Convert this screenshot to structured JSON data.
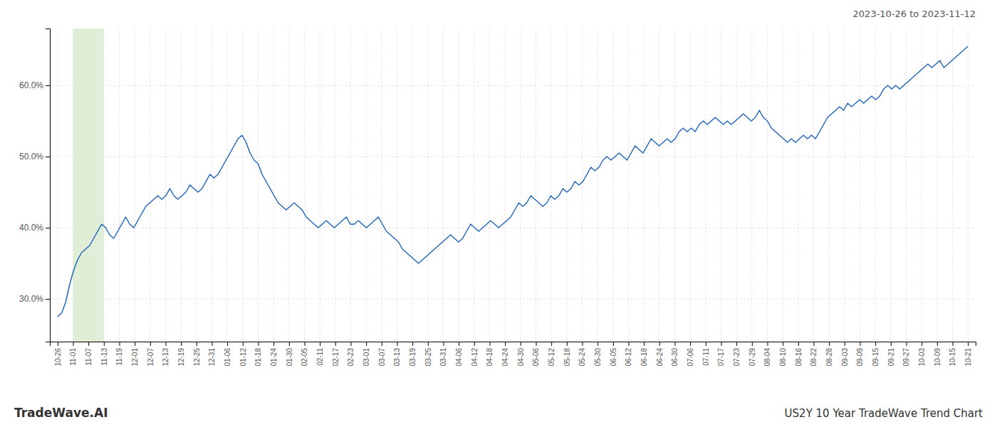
{
  "chart_data": {
    "type": "line",
    "title": "2023-10-26 to 2023-11-12",
    "annotations": [
      "TradeWave.AI",
      "US2Y 10 Year TradeWave Trend Chart"
    ],
    "color": "#2266bb",
    "highlight_range": [
      1.0,
      3.0
    ],
    "highlight_color": "#e0eed8",
    "grid": true,
    "xlim": [
      -0.5,
      59.5
    ],
    "xticks": [
      {
        "value": 0,
        "label": "10-26"
      },
      {
        "value": 1,
        "label": "11-01"
      },
      {
        "value": 2,
        "label": "11-07"
      },
      {
        "value": 3,
        "label": "11-13"
      },
      {
        "value": 4,
        "label": "11-19"
      },
      {
        "value": 5,
        "label": "12-01"
      },
      {
        "value": 6,
        "label": "12-07"
      },
      {
        "value": 7,
        "label": "12-13"
      },
      {
        "value": 8,
        "label": "12-19"
      },
      {
        "value": 9,
        "label": "12-25"
      },
      {
        "value": 10,
        "label": "12-31"
      },
      {
        "value": 11,
        "label": "01-06"
      },
      {
        "value": 12,
        "label": "01-12"
      },
      {
        "value": 13,
        "label": "01-18"
      },
      {
        "value": 14,
        "label": "01-24"
      },
      {
        "value": 15,
        "label": "01-30"
      },
      {
        "value": 16,
        "label": "02-05"
      },
      {
        "value": 17,
        "label": "02-11"
      },
      {
        "value": 18,
        "label": "02-17"
      },
      {
        "value": 19,
        "label": "02-23"
      },
      {
        "value": 20,
        "label": "03-01"
      },
      {
        "value": 21,
        "label": "03-07"
      },
      {
        "value": 22,
        "label": "03-13"
      },
      {
        "value": 23,
        "label": "03-19"
      },
      {
        "value": 24,
        "label": "03-25"
      },
      {
        "value": 25,
        "label": "03-31"
      },
      {
        "value": 26,
        "label": "04-06"
      },
      {
        "value": 27,
        "label": "04-12"
      },
      {
        "value": 28,
        "label": "04-18"
      },
      {
        "value": 29,
        "label": "04-24"
      },
      {
        "value": 30,
        "label": "04-30"
      },
      {
        "value": 31,
        "label": "05-06"
      },
      {
        "value": 32,
        "label": "05-12"
      },
      {
        "value": 33,
        "label": "05-18"
      },
      {
        "value": 34,
        "label": "05-24"
      },
      {
        "value": 35,
        "label": "05-30"
      },
      {
        "value": 36,
        "label": "06-05"
      },
      {
        "value": 37,
        "label": "06-12"
      },
      {
        "value": 38,
        "label": "06-18"
      },
      {
        "value": 39,
        "label": "06-24"
      },
      {
        "value": 40,
        "label": "06-30"
      },
      {
        "value": 41,
        "label": "07-06"
      },
      {
        "value": 42,
        "label": "07-11"
      },
      {
        "value": 43,
        "label": "07-17"
      },
      {
        "value": 44,
        "label": "07-23"
      },
      {
        "value": 45,
        "label": "07-29"
      },
      {
        "value": 46,
        "label": "08-04"
      },
      {
        "value": 47,
        "label": "08-10"
      },
      {
        "value": 48,
        "label": "08-16"
      },
      {
        "value": 49,
        "label": "08-22"
      },
      {
        "value": 50,
        "label": "08-28"
      },
      {
        "value": 51,
        "label": "09-03"
      },
      {
        "value": 52,
        "label": "09-09"
      },
      {
        "value": 53,
        "label": "09-15"
      },
      {
        "value": 54,
        "label": "09-21"
      },
      {
        "value": 55,
        "label": "09-27"
      },
      {
        "value": 56,
        "label": "10-03"
      },
      {
        "value": 57,
        "label": "10-09"
      },
      {
        "value": 58,
        "label": "10-15"
      },
      {
        "value": 59,
        "label": "10-21"
      }
    ],
    "ylim": [
      24.0,
      68.0
    ],
    "yticks": [
      {
        "value": 30.0,
        "label": "30.0%"
      },
      {
        "value": 40.0,
        "label": "40.0%"
      },
      {
        "value": 50.0,
        "label": "50.0%"
      },
      {
        "value": 60.0,
        "label": "60.0%"
      }
    ],
    "values": [
      27.5,
      28.0,
      29.5,
      32.0,
      34.0,
      35.5,
      36.5,
      37.0,
      37.5,
      38.5,
      39.5,
      40.5,
      40.0,
      39.0,
      38.5,
      39.5,
      40.5,
      41.5,
      40.5,
      40.0,
      41.0,
      42.0,
      43.0,
      43.5,
      44.0,
      44.5,
      44.0,
      44.5,
      45.5,
      44.5,
      44.0,
      44.5,
      45.0,
      46.0,
      45.5,
      45.0,
      45.5,
      46.5,
      47.5,
      47.0,
      47.5,
      48.5,
      49.5,
      50.5,
      51.5,
      52.5,
      53.0,
      52.0,
      50.5,
      49.5,
      49.0,
      47.5,
      46.5,
      45.5,
      44.5,
      43.5,
      43.0,
      42.5,
      43.0,
      43.5,
      43.0,
      42.5,
      41.5,
      41.0,
      40.5,
      40.0,
      40.5,
      41.0,
      40.5,
      40.0,
      40.5,
      41.0,
      41.5,
      40.5,
      40.5,
      41.0,
      40.5,
      40.0,
      40.5,
      41.0,
      41.5,
      40.5,
      39.5,
      39.0,
      38.5,
      38.0,
      37.0,
      36.5,
      36.0,
      35.5,
      35.0,
      35.5,
      36.0,
      36.5,
      37.0,
      37.5,
      38.0,
      38.5,
      39.0,
      38.5,
      38.0,
      38.5,
      39.5,
      40.5,
      40.0,
      39.5,
      40.0,
      40.5,
      41.0,
      40.5,
      40.0,
      40.5,
      41.0,
      41.5,
      42.5,
      43.5,
      43.0,
      43.5,
      44.5,
      44.0,
      43.5,
      43.0,
      43.5,
      44.5,
      44.0,
      44.5,
      45.5,
      45.0,
      45.5,
      46.5,
      46.0,
      46.5,
      47.5,
      48.5,
      48.0,
      48.5,
      49.5,
      50.0,
      49.5,
      50.0,
      50.5,
      50.0,
      49.5,
      50.5,
      51.5,
      51.0,
      50.5,
      51.5,
      52.5,
      52.0,
      51.5,
      52.0,
      52.5,
      52.0,
      52.5,
      53.5,
      54.0,
      53.5,
      54.0,
      53.5,
      54.5,
      55.0,
      54.5,
      55.0,
      55.5,
      55.0,
      54.5,
      55.0,
      54.5,
      55.0,
      55.5,
      56.0,
      55.5,
      55.0,
      55.5,
      56.5,
      55.5,
      55.0,
      54.0,
      53.5,
      53.0,
      52.5,
      52.0,
      52.5,
      52.0,
      52.5,
      53.0,
      52.5,
      53.0,
      52.5,
      53.5,
      54.5,
      55.5,
      56.0,
      56.5,
      57.0,
      56.5,
      57.5,
      57.0,
      57.5,
      58.0,
      57.5,
      58.0,
      58.5,
      58.0,
      58.5,
      59.5,
      60.0,
      59.5,
      60.0,
      59.5,
      60.0,
      60.5,
      61.0,
      61.5,
      62.0,
      62.5,
      63.0,
      62.5,
      63.0,
      63.5,
      62.5,
      63.0,
      63.5,
      64.0,
      64.5,
      65.0,
      65.5
    ]
  }
}
